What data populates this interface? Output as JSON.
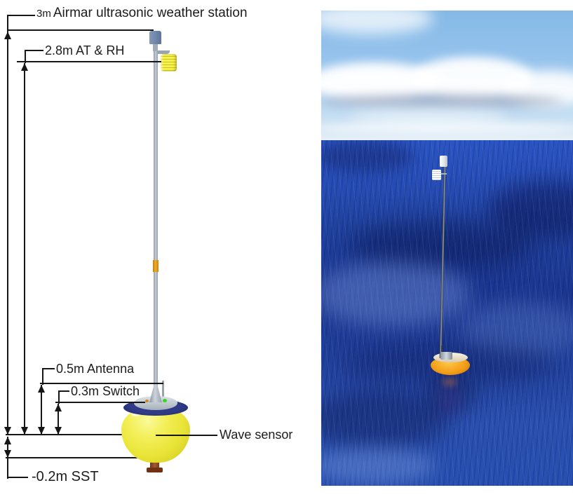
{
  "figure": {
    "diagram": {
      "labels": {
        "station_height": "3m",
        "station_name": "Airmar ultrasonic weather station",
        "at_rh": "2.8m AT & RH",
        "antenna": "0.5m Antenna",
        "switch": "0.3m Switch",
        "wave_sensor": "Wave sensor",
        "sst": "-0.2m SST"
      },
      "colors": {
        "line": "#161616",
        "buoy_hull_yellow": "#e9e437",
        "deck_ring_navy": "#232d73",
        "mast_gray": "#a8b2bc",
        "weather_station_blue": "#7189ad",
        "radiation_shield_yellow": "#f6f046",
        "mast_collar_orange": "#f0ad28",
        "sst_fitting_brown": "#8a4a28",
        "switch_led_green": "#35d81f"
      }
    },
    "photo": {
      "colors": {
        "sky_blue": "#8abde8",
        "cloud_white": "#f2f2f0",
        "ocean_blue": "#1e3d9e",
        "buoy_orange": "#f4a01a"
      }
    }
  }
}
